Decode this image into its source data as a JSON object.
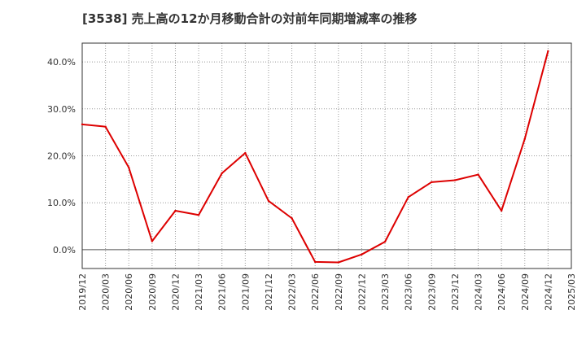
{
  "chart_data": {
    "type": "line",
    "title": "[3538]  売上高の12か月移動合計の対前年同期増減率の推移",
    "xlabel": "",
    "ylabel": "",
    "ylim": [
      -4,
      44
    ],
    "y_ticks": [
      0,
      10,
      20,
      30,
      40
    ],
    "y_tick_labels": [
      "0.0%",
      "10.0%",
      "20.0%",
      "30.0%",
      "40.0%"
    ],
    "x_tick_labels": [
      "2019/12",
      "2020/03",
      "2020/06",
      "2020/09",
      "2020/12",
      "2021/03",
      "2021/06",
      "2021/09",
      "2021/12",
      "2022/03",
      "2022/06",
      "2022/09",
      "2022/12",
      "2023/03",
      "2023/06",
      "2023/09",
      "2023/12",
      "2024/03",
      "2024/06",
      "2024/09",
      "2024/12",
      "2025/03"
    ],
    "grid": true,
    "legend": "none",
    "series": [
      {
        "name": "増減率",
        "color": "#dd0000",
        "x": [
          "2019/12",
          "2020/03",
          "2020/06",
          "2020/09",
          "2020/12",
          "2021/03",
          "2021/06",
          "2021/09",
          "2021/12",
          "2022/03",
          "2022/06",
          "2022/09",
          "2022/12",
          "2023/03",
          "2023/06",
          "2023/09",
          "2023/12",
          "2024/03",
          "2024/06",
          "2024/09",
          "2024/12"
        ],
        "values": [
          26.7,
          26.2,
          17.5,
          1.8,
          8.3,
          7.4,
          16.3,
          20.6,
          10.4,
          6.7,
          -2.6,
          -2.7,
          -1.0,
          1.7,
          11.2,
          14.4,
          14.8,
          16.0,
          8.3,
          23.6,
          42.3
        ]
      }
    ]
  }
}
